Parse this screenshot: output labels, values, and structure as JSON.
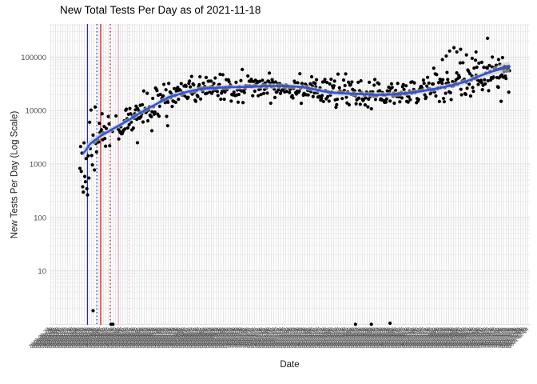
{
  "title": "New Total Tests Per Day as of 2021-11-18",
  "chart_data": {
    "type": "scatter",
    "title": "New Total Tests Per Day as of 2021-11-18",
    "xlabel": "Date",
    "ylabel": "New Tests Per Day (Log Scale)",
    "y_scale": "log10",
    "ylim": [
      1,
      420000
    ],
    "y_tick_labels": [
      "100000",
      "10000",
      "1000",
      "100",
      "10"
    ],
    "y_tick_values": [
      100000,
      10000,
      1000,
      100,
      10
    ],
    "x_axis": {
      "start_date": "2020-01-22",
      "end_date": "2021-12-15",
      "label_step_days": 2,
      "label_angle_deg": 45,
      "data_first_date": "2020-03-04",
      "data_last_date": "2021-11-18"
    },
    "grid": {
      "h_major_color": "#dcdcdc",
      "h_minor_color": "#eeeeee",
      "v_stripe_color": "#e7e7e7"
    },
    "point_color": "#000000",
    "point_radius": 2.1,
    "smooth_line": {
      "color": "#2e54e8",
      "band_outer_color": "#c9c9c9",
      "band_inner_color": "#3a3a3a",
      "points": [
        [
          0.07,
          1600
        ],
        [
          0.085,
          2400
        ],
        [
          0.105,
          3300
        ],
        [
          0.135,
          4700
        ],
        [
          0.163,
          6500
        ],
        [
          0.191,
          9300
        ],
        [
          0.221,
          13000
        ],
        [
          0.246,
          17500
        ],
        [
          0.301,
          24000
        ],
        [
          0.358,
          27000
        ],
        [
          0.413,
          27800
        ],
        [
          0.468,
          28800
        ],
        [
          0.524,
          27500
        ],
        [
          0.584,
          22000
        ],
        [
          0.641,
          20500
        ],
        [
          0.696,
          19800
        ],
        [
          0.75,
          21500
        ],
        [
          0.807,
          26000
        ],
        [
          0.862,
          34000
        ],
        [
          0.917,
          52000
        ],
        [
          0.958,
          66000
        ]
      ]
    },
    "vlines": [
      {
        "x_frac": 0.079,
        "color": "#2222cc",
        "style": "solid"
      },
      {
        "x_frac": 0.0987,
        "color": "#2222cc",
        "style": "dotted"
      },
      {
        "x_frac": 0.1065,
        "color": "#dd0000",
        "style": "solid"
      },
      {
        "x_frac": 0.1264,
        "color": "#dd0000",
        "style": "dotted"
      },
      {
        "x_frac": 0.1436,
        "color": "#f5afc0",
        "style": "solid"
      },
      {
        "x_frac": 0.1652,
        "color": "#f8ccd8",
        "style": "dotted"
      }
    ],
    "scatter_model": {
      "seed": 42,
      "first_frac": 0.0632,
      "last_frac": 0.9584,
      "per_day_frac_step": 0.001445,
      "value_floor": 250,
      "value_cap": 350000,
      "sigma_log10_segments": [
        [
          0.095,
          0.3
        ],
        [
          0.16,
          0.2
        ],
        [
          0.25,
          0.155
        ],
        [
          0.8,
          0.125
        ],
        [
          1.01,
          0.165
        ]
      ],
      "early_low_tail": {
        "below_frac": 0.105,
        "prob": 0.3,
        "extra_log10_drop": [
          0.3,
          0.8
        ]
      },
      "sparse_zone": {
        "from_frac": 0.118,
        "to_frac": 0.142,
        "drop_prob": 0.5
      },
      "late_down_bias": {
        "after_frac": 0.93,
        "log10_shift": -0.12
      }
    },
    "outlier_points": {
      "high": [
        [
          0.8,
          62000
        ],
        [
          0.818,
          90000
        ],
        [
          0.826,
          105000
        ],
        [
          0.833,
          130000
        ],
        [
          0.842,
          150000
        ],
        [
          0.848,
          125000
        ],
        [
          0.856,
          140000
        ],
        [
          0.868,
          110000
        ],
        [
          0.88,
          95000
        ],
        [
          0.888,
          125000
        ],
        [
          0.9,
          80000
        ],
        [
          0.912,
          225000
        ],
        [
          0.922,
          100000
        ],
        [
          0.935,
          90000
        ]
      ],
      "low": [
        [
          0.0907,
          1.8
        ],
        [
          0.128,
          1.0
        ],
        [
          0.132,
          1.0
        ],
        [
          0.637,
          1.0
        ],
        [
          0.67,
          1.0
        ],
        [
          0.709,
          1.05
        ],
        [
          0.183,
          2500
        ],
        [
          0.213,
          4200
        ],
        [
          0.246,
          5200
        ]
      ]
    }
  }
}
